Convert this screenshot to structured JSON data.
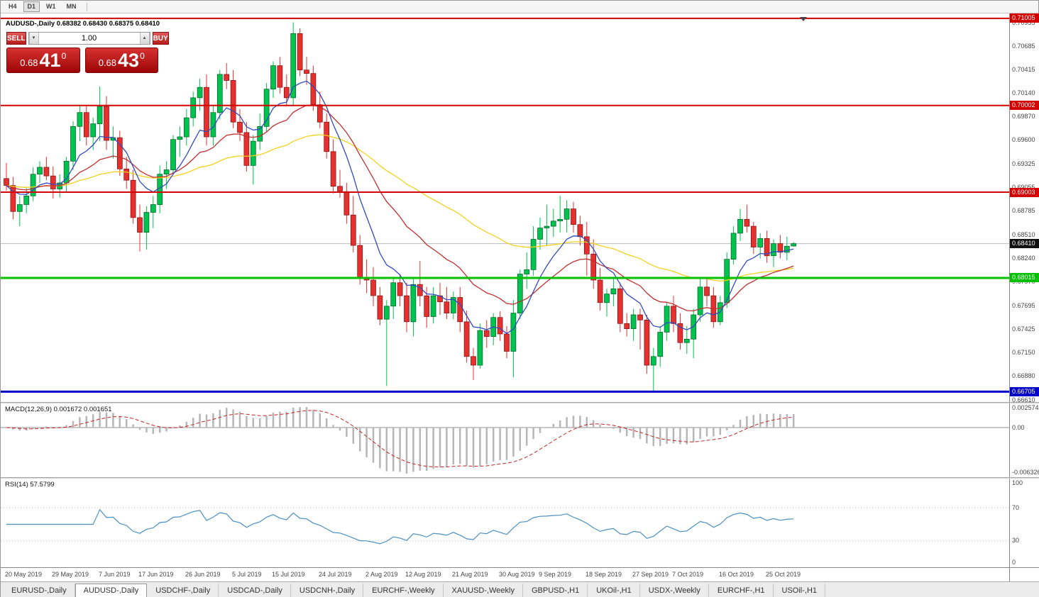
{
  "toolbar": {
    "timeframes": [
      {
        "label": "H4",
        "active": false
      },
      {
        "label": "D1",
        "active": true
      },
      {
        "label": "W1",
        "active": false
      },
      {
        "label": "MN",
        "active": false
      }
    ]
  },
  "chart_header": {
    "symbol_title": "AUDUSD-,Daily",
    "ohlc": "0.68382 0.68430 0.68375 0.68410"
  },
  "trade_panel": {
    "sell_label": "SELL",
    "buy_label": "BUY",
    "volume": "1.00",
    "volume_down_glyph": "▾",
    "volume_up_glyph": "▴",
    "sell_price": {
      "prefix": "0.68",
      "big": "41",
      "sup": "0"
    },
    "buy_price": {
      "prefix": "0.68",
      "big": "43",
      "sup": "0"
    }
  },
  "chart_data": {
    "type": "candlestick",
    "symbol": "AUDUSD",
    "timeframe": "Daily",
    "bull_color": "#00c24e",
    "bear_color": "#e53030",
    "price_axis": {
      "labels": [
        "0.70955",
        "0.70685",
        "0.70415",
        "0.70140",
        "0.69870",
        "0.69600",
        "0.69325",
        "0.69055",
        "0.68785",
        "0.68510",
        "0.68240",
        "0.67970",
        "0.67695",
        "0.67425",
        "0.67150",
        "0.66880",
        "0.66610"
      ]
    },
    "levels": [
      {
        "value": 0.71005,
        "label": "0.71005",
        "color": "#d40000",
        "thickness": 2
      },
      {
        "value": 0.70002,
        "label": "0.70002",
        "color": "#d40000",
        "thickness": 2
      },
      {
        "value": 0.69003,
        "label": "0.69003",
        "color": "#d40000",
        "thickness": 2
      },
      {
        "value": 0.68015,
        "label": "0.68015",
        "color": "#00c000",
        "thickness": 3
      },
      {
        "value": 0.66705,
        "label": "0.66705",
        "color": "#0000c8",
        "thickness": 3
      }
    ],
    "bid": {
      "value": 0.6841,
      "label": "0.68410",
      "badge_color": "#101010"
    },
    "moving_averages": [
      {
        "period": 55,
        "color": "#f2d21f"
      },
      {
        "period": 21,
        "color": "#c03030"
      },
      {
        "period": 8,
        "color": "#2f4bc0"
      }
    ],
    "date_labels": [
      {
        "text": "20 May 2019",
        "index": 0
      },
      {
        "text": "29 May 2019",
        "index": 7
      },
      {
        "text": "7 Jun 2019",
        "index": 14
      },
      {
        "text": "17 Jun 2019",
        "index": 20
      },
      {
        "text": "26 Jun 2019",
        "index": 27
      },
      {
        "text": "5 Jul 2019",
        "index": 34
      },
      {
        "text": "15 Jul 2019",
        "index": 40
      },
      {
        "text": "24 Jul 2019",
        "index": 47
      },
      {
        "text": "2 Aug 2019",
        "index": 54
      },
      {
        "text": "12 Aug 2019",
        "index": 60
      },
      {
        "text": "21 Aug 2019",
        "index": 67
      },
      {
        "text": "30 Aug 2019",
        "index": 74
      },
      {
        "text": "9 Sep 2019",
        "index": 80
      },
      {
        "text": "18 Sep 2019",
        "index": 87
      },
      {
        "text": "27 Sep 2019",
        "index": 94
      },
      {
        "text": "7 Oct 2019",
        "index": 100
      },
      {
        "text": "16 Oct 2019",
        "index": 107
      },
      {
        "text": "25 Oct 2019",
        "index": 114
      }
    ],
    "candles_format": "[open, high, low, close]",
    "candles": [
      [
        0.6916,
        0.6934,
        0.6902,
        0.6908
      ],
      [
        0.6908,
        0.6918,
        0.6869,
        0.6878
      ],
      [
        0.6878,
        0.6896,
        0.6861,
        0.6886
      ],
      [
        0.6886,
        0.6905,
        0.6876,
        0.6896
      ],
      [
        0.6896,
        0.6929,
        0.689,
        0.6921
      ],
      [
        0.6921,
        0.6936,
        0.6911,
        0.6929
      ],
      [
        0.6929,
        0.6941,
        0.6914,
        0.6919
      ],
      [
        0.6919,
        0.693,
        0.6893,
        0.6904
      ],
      [
        0.6904,
        0.6921,
        0.6894,
        0.6911
      ],
      [
        0.6911,
        0.6941,
        0.6901,
        0.6936
      ],
      [
        0.6936,
        0.6982,
        0.6926,
        0.6976
      ],
      [
        0.6976,
        0.7001,
        0.6959,
        0.6992
      ],
      [
        0.6992,
        0.7,
        0.6954,
        0.6964
      ],
      [
        0.6964,
        0.6986,
        0.6949,
        0.6979
      ],
      [
        0.6979,
        0.7022,
        0.6959,
        0.6999
      ],
      [
        0.6999,
        0.7011,
        0.6949,
        0.696
      ],
      [
        0.696,
        0.6976,
        0.6939,
        0.6963
      ],
      [
        0.6963,
        0.6971,
        0.6919,
        0.6927
      ],
      [
        0.6927,
        0.6941,
        0.6904,
        0.6914
      ],
      [
        0.6914,
        0.6926,
        0.6864,
        0.6871
      ],
      [
        0.6871,
        0.6886,
        0.6832,
        0.6854
      ],
      [
        0.6854,
        0.6884,
        0.6834,
        0.6877
      ],
      [
        0.6877,
        0.6896,
        0.6859,
        0.6886
      ],
      [
        0.6886,
        0.6931,
        0.6876,
        0.6921
      ],
      [
        0.6921,
        0.6936,
        0.6904,
        0.6926
      ],
      [
        0.6926,
        0.6966,
        0.6921,
        0.6961
      ],
      [
        0.6961,
        0.6976,
        0.6941,
        0.6964
      ],
      [
        0.6964,
        0.6996,
        0.6954,
        0.6986
      ],
      [
        0.6986,
        0.7016,
        0.6976,
        0.7009
      ],
      [
        0.7009,
        0.7031,
        0.6994,
        0.7021
      ],
      [
        0.7021,
        0.7036,
        0.6954,
        0.6964
      ],
      [
        0.6964,
        0.7001,
        0.6954,
        0.6992
      ],
      [
        0.6992,
        0.7041,
        0.6984,
        0.7036
      ],
      [
        0.7036,
        0.7049,
        0.7019,
        0.7029
      ],
      [
        0.7029,
        0.7041,
        0.6974,
        0.6981
      ],
      [
        0.6981,
        0.6996,
        0.6959,
        0.6969
      ],
      [
        0.6969,
        0.6981,
        0.6924,
        0.6931
      ],
      [
        0.6931,
        0.6966,
        0.6909,
        0.6959
      ],
      [
        0.6959,
        0.6991,
        0.6949,
        0.6976
      ],
      [
        0.6976,
        0.7026,
        0.6969,
        0.7019
      ],
      [
        0.7019,
        0.7051,
        0.7009,
        0.7046
      ],
      [
        0.7046,
        0.7056,
        0.7014,
        0.7021
      ],
      [
        0.7021,
        0.7036,
        0.6999,
        0.7009
      ],
      [
        0.7009,
        0.7096,
        0.7001,
        0.7083
      ],
      [
        0.7083,
        0.7089,
        0.7034,
        0.7041
      ],
      [
        0.7041,
        0.7056,
        0.7024,
        0.7037
      ],
      [
        0.7037,
        0.7046,
        0.6994,
        0.7001
      ],
      [
        0.7001,
        0.7016,
        0.6974,
        0.6981
      ],
      [
        0.6981,
        0.6991,
        0.6939,
        0.6947
      ],
      [
        0.6947,
        0.6961,
        0.6899,
        0.6907
      ],
      [
        0.6907,
        0.6926,
        0.6894,
        0.6901
      ],
      [
        0.6901,
        0.6911,
        0.6864,
        0.6874
      ],
      [
        0.6874,
        0.6896,
        0.6831,
        0.6839
      ],
      [
        0.6839,
        0.6851,
        0.6794,
        0.6801
      ],
      [
        0.6801,
        0.6823,
        0.6784,
        0.6799
      ],
      [
        0.6799,
        0.6814,
        0.6769,
        0.6781
      ],
      [
        0.6781,
        0.6791,
        0.6747,
        0.6754
      ],
      [
        0.6754,
        0.6776,
        0.6677,
        0.6769
      ],
      [
        0.6769,
        0.6801,
        0.6754,
        0.6796
      ],
      [
        0.6796,
        0.6806,
        0.6769,
        0.6781
      ],
      [
        0.6781,
        0.6796,
        0.6739,
        0.6751
      ],
      [
        0.6751,
        0.6801,
        0.6734,
        0.6794
      ],
      [
        0.6794,
        0.6821,
        0.6769,
        0.6781
      ],
      [
        0.6781,
        0.6791,
        0.6744,
        0.6757
      ],
      [
        0.6757,
        0.6791,
        0.6749,
        0.6781
      ],
      [
        0.6781,
        0.6796,
        0.6759,
        0.6774
      ],
      [
        0.6774,
        0.6791,
        0.6754,
        0.6761
      ],
      [
        0.6761,
        0.6786,
        0.6754,
        0.6779
      ],
      [
        0.6779,
        0.6791,
        0.6739,
        0.6751
      ],
      [
        0.6751,
        0.6764,
        0.6704,
        0.6711
      ],
      [
        0.6711,
        0.6721,
        0.6684,
        0.6701
      ],
      [
        0.6701,
        0.6749,
        0.6697,
        0.6741
      ],
      [
        0.6741,
        0.6753,
        0.6721,
        0.6734
      ],
      [
        0.6734,
        0.6761,
        0.6724,
        0.6756
      ],
      [
        0.6756,
        0.6763,
        0.6729,
        0.6737
      ],
      [
        0.6737,
        0.6746,
        0.6709,
        0.6717
      ],
      [
        0.6717,
        0.6776,
        0.6687,
        0.6761
      ],
      [
        0.6761,
        0.6811,
        0.6754,
        0.6806
      ],
      [
        0.6806,
        0.6831,
        0.6789,
        0.6811
      ],
      [
        0.6811,
        0.6861,
        0.6804,
        0.6846
      ],
      [
        0.6846,
        0.6871,
        0.6834,
        0.6859
      ],
      [
        0.6859,
        0.6886,
        0.6839,
        0.6861
      ],
      [
        0.6861,
        0.6881,
        0.6849,
        0.6867
      ],
      [
        0.6867,
        0.6896,
        0.6854,
        0.6869
      ],
      [
        0.6869,
        0.6891,
        0.6854,
        0.6881
      ],
      [
        0.6881,
        0.6889,
        0.6854,
        0.6863
      ],
      [
        0.6863,
        0.6873,
        0.6839,
        0.6849
      ],
      [
        0.6849,
        0.6866,
        0.6804,
        0.6829
      ],
      [
        0.6829,
        0.6846,
        0.6789,
        0.6799
      ],
      [
        0.6799,
        0.6813,
        0.6764,
        0.6773
      ],
      [
        0.6773,
        0.6789,
        0.6757,
        0.6783
      ],
      [
        0.6783,
        0.6801,
        0.6769,
        0.6789
      ],
      [
        0.6789,
        0.6796,
        0.6739,
        0.6749
      ],
      [
        0.6749,
        0.6761,
        0.6734,
        0.6743
      ],
      [
        0.6743,
        0.6766,
        0.6729,
        0.6759
      ],
      [
        0.6759,
        0.6766,
        0.6719,
        0.6753
      ],
      [
        0.6753,
        0.6759,
        0.6691,
        0.6701
      ],
      [
        0.6701,
        0.6721,
        0.667,
        0.6711
      ],
      [
        0.6711,
        0.6746,
        0.6699,
        0.6739
      ],
      [
        0.6739,
        0.6773,
        0.6729,
        0.6769
      ],
      [
        0.6769,
        0.6781,
        0.6739,
        0.6749
      ],
      [
        0.6749,
        0.6761,
        0.6719,
        0.6727
      ],
      [
        0.6727,
        0.6746,
        0.6714,
        0.6731
      ],
      [
        0.6731,
        0.6766,
        0.6709,
        0.6759
      ],
      [
        0.6759,
        0.6801,
        0.6751,
        0.6791
      ],
      [
        0.6791,
        0.6801,
        0.6769,
        0.6781
      ],
      [
        0.6781,
        0.6791,
        0.6744,
        0.6751
      ],
      [
        0.6751,
        0.6781,
        0.6747,
        0.6773
      ],
      [
        0.6773,
        0.6831,
        0.6767,
        0.6823
      ],
      [
        0.6823,
        0.6861,
        0.6817,
        0.6853
      ],
      [
        0.6853,
        0.6881,
        0.6844,
        0.6869
      ],
      [
        0.6869,
        0.6886,
        0.6854,
        0.6861
      ],
      [
        0.6861,
        0.6866,
        0.6829,
        0.6837
      ],
      [
        0.6837,
        0.6853,
        0.6824,
        0.6847
      ],
      [
        0.6847,
        0.6856,
        0.6819,
        0.6827
      ],
      [
        0.6827,
        0.6846,
        0.6814,
        0.6841
      ],
      [
        0.6841,
        0.6851,
        0.6824,
        0.6831
      ],
      [
        0.6831,
        0.6849,
        0.6822,
        0.6838
      ],
      [
        0.68382,
        0.6843,
        0.68375,
        0.6841
      ]
    ]
  },
  "macd_panel": {
    "label": "MACD(12,26,9)",
    "values": "0.001672 0.001651",
    "scale": {
      "top": "0.002574",
      "mid": "0.00",
      "bottom": "-0.006326"
    },
    "params": {
      "fast": 12,
      "slow": 26,
      "signal": 9
    }
  },
  "rsi_panel": {
    "label": "RSI(14)",
    "value": "57.5799",
    "period": 14,
    "scale": {
      "top": "100",
      "overbought": "70",
      "oversold": "30",
      "bottom": "0"
    }
  },
  "tabs": [
    {
      "label": "EURUSD-,Daily",
      "active": false
    },
    {
      "label": "AUDUSD-,Daily",
      "active": true
    },
    {
      "label": "USDCHF-,Daily",
      "active": false
    },
    {
      "label": "USDCAD-,Daily",
      "active": false
    },
    {
      "label": "USDCNH-,Daily",
      "active": false
    },
    {
      "label": "EURCHF-,Weekly",
      "active": false
    },
    {
      "label": "XAUUSD-,Weekly",
      "active": false
    },
    {
      "label": "GBPUSD-,H1",
      "active": false
    },
    {
      "label": "UKOil-,H1",
      "active": false
    },
    {
      "label": "USDX-,Weekly",
      "active": false
    },
    {
      "label": "EURCHF-,H1",
      "active": false
    },
    {
      "label": "USOil-,H1",
      "active": false
    }
  ]
}
